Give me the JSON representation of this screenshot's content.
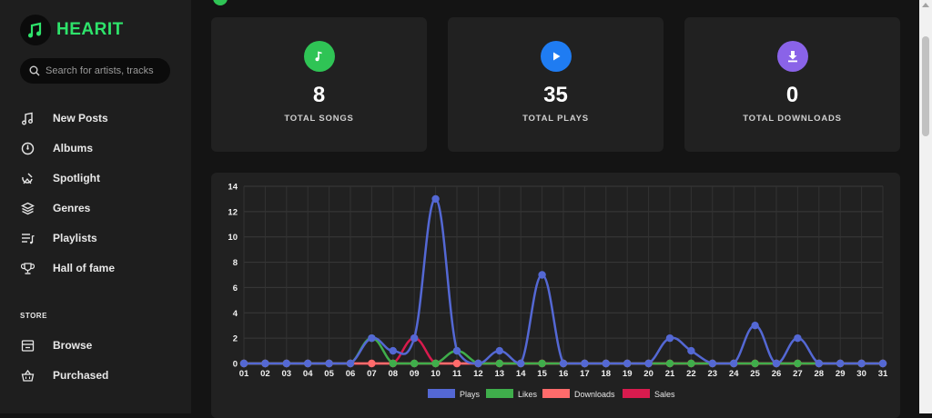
{
  "app": {
    "name": "HEARIT",
    "accent": "#2ee36b"
  },
  "search": {
    "placeholder": "Search for artists, tracks"
  },
  "nav": [
    {
      "label": "New Posts",
      "icon": "music-note-icon"
    },
    {
      "label": "Albums",
      "icon": "disc-icon"
    },
    {
      "label": "Spotlight",
      "icon": "spotlight-icon"
    },
    {
      "label": "Genres",
      "icon": "layers-icon"
    },
    {
      "label": "Playlists",
      "icon": "playlist-icon"
    },
    {
      "label": "Hall of fame",
      "icon": "trophy-icon"
    }
  ],
  "store": {
    "title": "STORE",
    "items": [
      {
        "label": "Browse",
        "icon": "browse-icon"
      },
      {
        "label": "Purchased",
        "icon": "basket-icon"
      }
    ]
  },
  "stats": [
    {
      "value": "8",
      "label": "TOTAL SONGS",
      "color": "#2fc455",
      "icon": "music-note-icon"
    },
    {
      "value": "35",
      "label": "TOTAL PLAYS",
      "color": "#1f7cf2",
      "icon": "play-icon"
    },
    {
      "value": "0",
      "label": "TOTAL DOWNLOADS",
      "color": "#8a63e8",
      "icon": "download-icon"
    }
  ],
  "chart_data": {
    "type": "line",
    "categories": [
      "01",
      "02",
      "03",
      "04",
      "05",
      "06",
      "07",
      "08",
      "09",
      "10",
      "11",
      "12",
      "13",
      "14",
      "15",
      "16",
      "17",
      "18",
      "19",
      "20",
      "21",
      "22",
      "23",
      "24",
      "25",
      "26",
      "27",
      "28",
      "29",
      "30",
      "31"
    ],
    "ylim": [
      0,
      14
    ],
    "yticks": [
      0,
      2,
      4,
      6,
      8,
      10,
      12,
      14
    ],
    "grid": true,
    "legend_placement": "bottom",
    "series": [
      {
        "name": "Plays",
        "color": "#5468d4",
        "values": [
          0,
          0,
          0,
          0,
          0,
          0,
          2,
          1,
          2,
          13,
          1,
          0,
          1,
          0,
          7,
          0,
          0,
          0,
          0,
          0,
          2,
          1,
          0,
          0,
          3,
          0,
          2,
          0,
          0,
          0,
          0
        ]
      },
      {
        "name": "Likes",
        "color": "#3fae4b",
        "values": [
          0,
          0,
          0,
          0,
          0,
          0,
          2,
          0,
          0,
          0,
          1,
          0,
          0,
          0,
          0,
          0,
          0,
          0,
          0,
          0,
          0,
          0,
          0,
          0,
          0,
          0,
          0,
          0,
          0,
          0,
          0
        ]
      },
      {
        "name": "Downloads",
        "color": "#ff6b6b",
        "values": [
          0,
          0,
          0,
          0,
          0,
          0,
          0,
          0,
          0,
          0,
          0,
          0,
          0,
          0,
          0,
          0,
          0,
          0,
          0,
          0,
          0,
          0,
          0,
          0,
          0,
          0,
          0,
          0,
          0,
          0,
          0
        ]
      },
      {
        "name": "Sales",
        "color": "#d81b4e",
        "values": [
          0,
          0,
          0,
          0,
          0,
          0,
          0,
          0,
          2,
          0,
          0,
          0,
          0,
          0,
          0,
          0,
          0,
          0,
          0,
          0,
          0,
          0,
          0,
          0,
          0,
          0,
          0,
          0,
          0,
          0,
          0
        ]
      }
    ]
  }
}
